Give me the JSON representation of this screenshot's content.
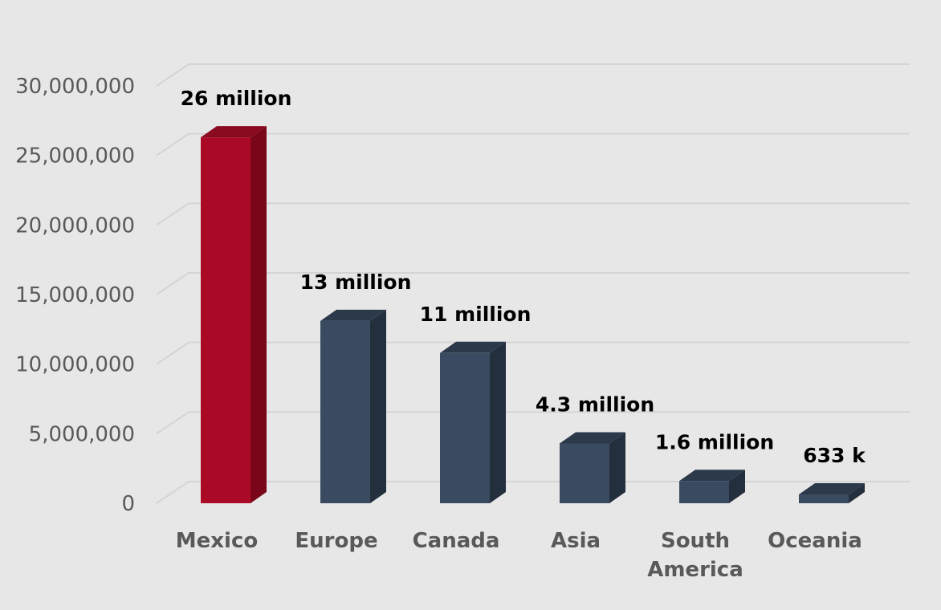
{
  "colors": {
    "background": "#e7e7e7",
    "gridline": "#d4d4d4",
    "highlight_bar": "#ab0a27",
    "highlight_bar_side": "#7a0619",
    "highlight_bar_top": "#8a0a20",
    "default_bar": "#3a4b61",
    "default_bar_side": "#242f3d",
    "default_bar_top": "#2c394a"
  },
  "chart_data": {
    "type": "bar",
    "style": "3d-column",
    "categories": [
      "Mexico",
      "Europe",
      "Canada",
      "Asia",
      "South America",
      "Oceania"
    ],
    "category_label_lines": [
      [
        "Mexico"
      ],
      [
        "Europe"
      ],
      [
        "Canada"
      ],
      [
        "Asia"
      ],
      [
        "South",
        "America"
      ],
      [
        "Oceania"
      ]
    ],
    "values": [
      26300000,
      13100000,
      10800000,
      4300000,
      1600000,
      633000
    ],
    "data_labels": [
      "26 million",
      "13 million",
      "11 million",
      "4.3 million",
      "1.6 million",
      "633 k"
    ],
    "highlighted": [
      "Mexico"
    ],
    "yticks": [
      0,
      5000000,
      10000000,
      15000000,
      20000000,
      25000000,
      30000000
    ],
    "ytick_labels": [
      "0",
      "5,000,000",
      "10,000,000",
      "15,000,000",
      "20,000,000",
      "25,000,000",
      "30,000,000"
    ],
    "ylim": [
      0,
      30000000
    ],
    "grid": true,
    "legend": "none",
    "title": "",
    "xlabel": "",
    "ylabel": ""
  }
}
